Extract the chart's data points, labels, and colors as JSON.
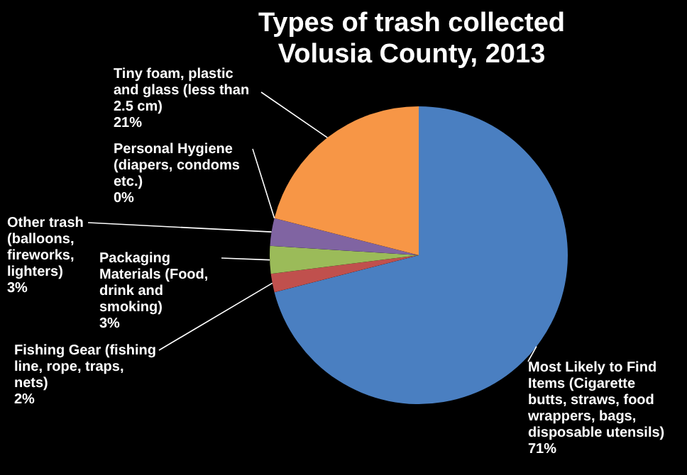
{
  "chart_data": {
    "type": "pie",
    "title": "Types of trash collected Volusia County, 2013",
    "categories": [
      "Most Likely to Find Items (Cigarette butts, straws, food wrappers, bags, disposable utensils)",
      "Fishing Gear (fishing line, rope, traps, nets)",
      "Packaging Materials (Food, drink and smoking)",
      "Other trash (balloons, fireworks, lighters)",
      "Personal Hygiene (diapers, condoms etc.)",
      "Tiny foam, plastic and glass (less than 2.5 cm)"
    ],
    "values": [
      71,
      2,
      3,
      3,
      0,
      21
    ],
    "value_labels": [
      "71%",
      "2%",
      "3%",
      "3%",
      "0%",
      "21%"
    ],
    "colors": [
      "#4a7fc1",
      "#c0504d",
      "#9bbb59",
      "#8064a2",
      "#4bacc6",
      "#f79646"
    ],
    "legend": false
  }
}
